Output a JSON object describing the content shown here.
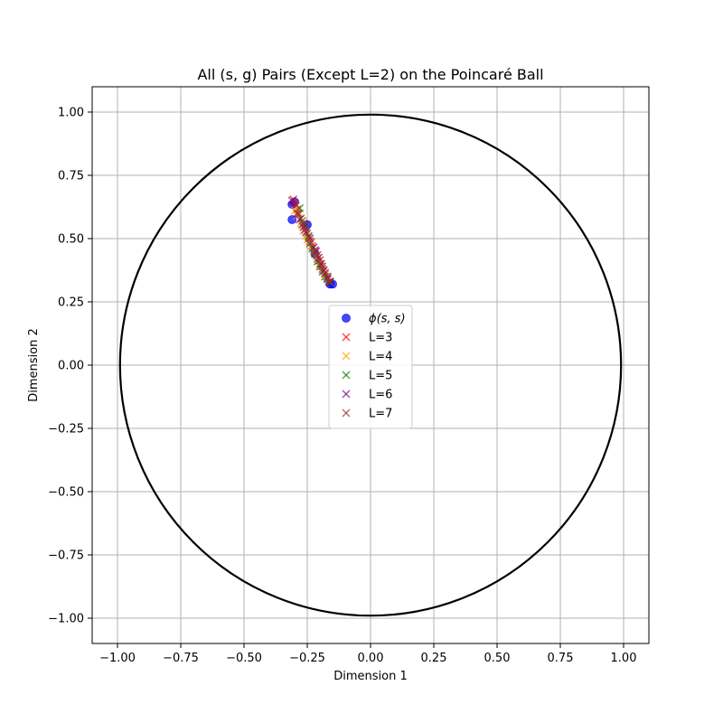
{
  "chart_data": {
    "type": "scatter",
    "title": "All (s, g) Pairs (Except L=2) on the Poincaré Ball",
    "xlabel": "Dimension 1",
    "ylabel": "Dimension 2",
    "xlim": [
      -1.1,
      1.1
    ],
    "ylim": [
      -1.1,
      1.1
    ],
    "xticks": [
      -1.0,
      -0.75,
      -0.5,
      -0.25,
      0.0,
      0.25,
      0.5,
      0.75,
      1.0
    ],
    "yticks": [
      -1.0,
      -0.75,
      -0.5,
      -0.25,
      0.0,
      0.25,
      0.5,
      0.75,
      1.0
    ],
    "xtick_labels": [
      "−1.00",
      "−0.75",
      "−0.50",
      "−0.25",
      "0.00",
      "0.25",
      "0.50",
      "0.75",
      "1.00"
    ],
    "ytick_labels": [
      "−1.00",
      "−0.75",
      "−0.50",
      "−0.25",
      "0.00",
      "0.25",
      "0.50",
      "0.75",
      "1.00"
    ],
    "grid": true,
    "boundary_circle_radius": 0.99,
    "legend_position": "center",
    "series": [
      {
        "name": "ϕ(s, s)",
        "marker": "circle",
        "color": "#0000ff",
        "points": [
          [
            -0.31,
            0.575
          ],
          [
            -0.31,
            0.635
          ],
          [
            -0.3,
            0.645
          ],
          [
            -0.25,
            0.555
          ],
          [
            -0.16,
            0.32
          ],
          [
            -0.15,
            0.32
          ],
          [
            -0.22,
            0.44
          ]
        ]
      },
      {
        "name": "L=3",
        "marker": "x",
        "color": "#ff0000",
        "points": [
          [
            -0.305,
            0.655
          ],
          [
            -0.295,
            0.63
          ],
          [
            -0.29,
            0.615
          ],
          [
            -0.285,
            0.6
          ],
          [
            -0.27,
            0.57
          ],
          [
            -0.26,
            0.55
          ],
          [
            -0.25,
            0.52
          ],
          [
            -0.24,
            0.49
          ],
          [
            -0.23,
            0.47
          ],
          [
            -0.22,
            0.45
          ],
          [
            -0.21,
            0.42
          ],
          [
            -0.2,
            0.4
          ],
          [
            -0.19,
            0.38
          ],
          [
            -0.18,
            0.36
          ],
          [
            -0.17,
            0.34
          ],
          [
            -0.165,
            0.33
          ]
        ]
      },
      {
        "name": "L=4",
        "marker": "x",
        "color": "#ffa500",
        "points": [
          [
            -0.3,
            0.61
          ],
          [
            -0.29,
            0.59
          ],
          [
            -0.28,
            0.6
          ],
          [
            -0.275,
            0.56
          ],
          [
            -0.265,
            0.53
          ],
          [
            -0.255,
            0.51
          ],
          [
            -0.25,
            0.495
          ],
          [
            -0.235,
            0.47
          ],
          [
            -0.225,
            0.45
          ],
          [
            -0.215,
            0.43
          ],
          [
            -0.205,
            0.41
          ],
          [
            -0.195,
            0.39
          ],
          [
            -0.185,
            0.37
          ],
          [
            -0.175,
            0.35
          ]
        ]
      },
      {
        "name": "L=5",
        "marker": "x",
        "color": "#008000",
        "points": [
          [
            -0.28,
            0.62
          ],
          [
            -0.275,
            0.58
          ],
          [
            -0.265,
            0.56
          ],
          [
            -0.255,
            0.54
          ],
          [
            -0.245,
            0.51
          ],
          [
            -0.24,
            0.48
          ],
          [
            -0.23,
            0.46
          ],
          [
            -0.22,
            0.44
          ],
          [
            -0.21,
            0.41
          ],
          [
            -0.2,
            0.39
          ],
          [
            -0.19,
            0.37
          ],
          [
            -0.18,
            0.35
          ],
          [
            -0.17,
            0.34
          ],
          [
            -0.16,
            0.325
          ]
        ]
      },
      {
        "name": "L=6",
        "marker": "x",
        "color": "#800080",
        "points": [
          [
            -0.31,
            0.65
          ],
          [
            -0.29,
            0.6
          ],
          [
            -0.28,
            0.575
          ],
          [
            -0.265,
            0.545
          ],
          [
            -0.255,
            0.525
          ],
          [
            -0.24,
            0.5
          ],
          [
            -0.225,
            0.465
          ],
          [
            -0.215,
            0.45
          ],
          [
            -0.205,
            0.425
          ],
          [
            -0.195,
            0.4
          ],
          [
            -0.185,
            0.375
          ],
          [
            -0.17,
            0.35
          ],
          [
            -0.16,
            0.33
          ]
        ]
      },
      {
        "name": "L=7",
        "marker": "x",
        "color": "#a52a2a",
        "points": [
          [
            -0.3,
            0.64
          ],
          [
            -0.285,
            0.595
          ],
          [
            -0.27,
            0.555
          ],
          [
            -0.26,
            0.535
          ],
          [
            -0.245,
            0.505
          ],
          [
            -0.235,
            0.485
          ],
          [
            -0.22,
            0.455
          ],
          [
            -0.21,
            0.435
          ],
          [
            -0.2,
            0.415
          ],
          [
            -0.19,
            0.39
          ],
          [
            -0.18,
            0.365
          ],
          [
            -0.17,
            0.345
          ],
          [
            -0.16,
            0.33
          ]
        ]
      }
    ]
  }
}
